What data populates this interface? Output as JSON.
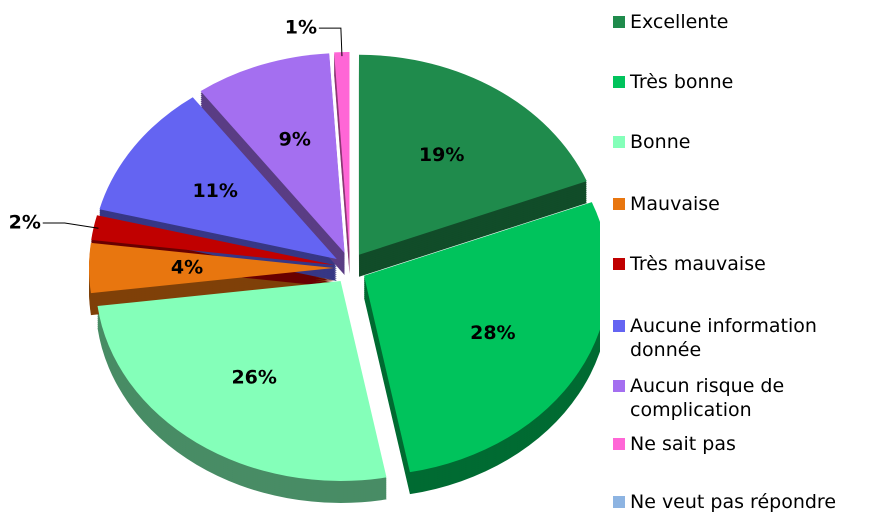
{
  "chart_data": {
    "type": "pie",
    "categories": [
      "Excellente",
      "Très bonne",
      "Bonne",
      "Mauvaise",
      "Très mauvaise",
      "Aucune information donnée",
      "Aucun risque de complication",
      "Ne sait pas",
      "Ne veut pas répondre"
    ],
    "values": [
      19,
      28,
      26,
      4,
      2,
      11,
      9,
      1,
      0
    ],
    "value_labels": [
      "19%",
      "28%",
      "26%",
      "4%",
      "2%",
      "11%",
      "9%",
      "1%",
      null
    ],
    "colors": [
      "#1f8b4c",
      "#00c35c",
      "#84ffb9",
      "#e8760f",
      "#c00000",
      "#6464f2",
      "#a46ff0",
      "#ff66d6",
      "#8db4e2"
    ],
    "legend": "right"
  }
}
